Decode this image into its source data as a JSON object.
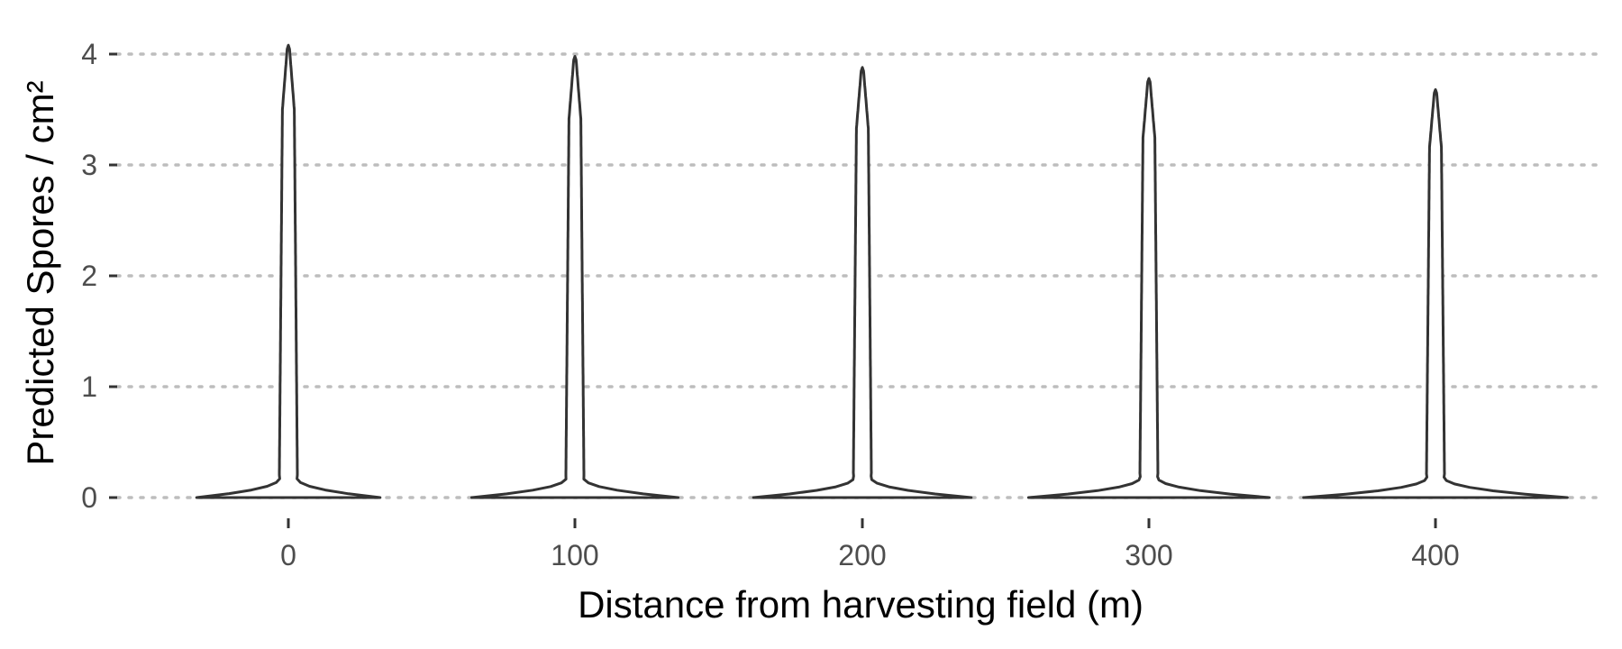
{
  "chart_data": {
    "type": "violin",
    "xlabel": "Distance from harvesting field (m)",
    "ylabel": "Predicted Spores / cm²",
    "categories": [
      "0",
      "100",
      "200",
      "300",
      "400"
    ],
    "ylim": [
      0,
      4.2
    ],
    "yticks": [
      0,
      1,
      2,
      3,
      4
    ],
    "grid": "horizontal dotted",
    "violins": [
      {
        "category": "0",
        "min": 0,
        "max": 4.08,
        "peak_half_width": 0.32
      },
      {
        "category": "100",
        "min": 0,
        "max": 3.98,
        "peak_half_width": 0.36
      },
      {
        "category": "200",
        "min": 0,
        "max": 3.88,
        "peak_half_width": 0.38
      },
      {
        "category": "300",
        "min": 0,
        "max": 3.78,
        "peak_half_width": 0.42
      },
      {
        "category": "400",
        "min": 0,
        "max": 3.68,
        "peak_half_width": 0.46
      }
    ]
  }
}
